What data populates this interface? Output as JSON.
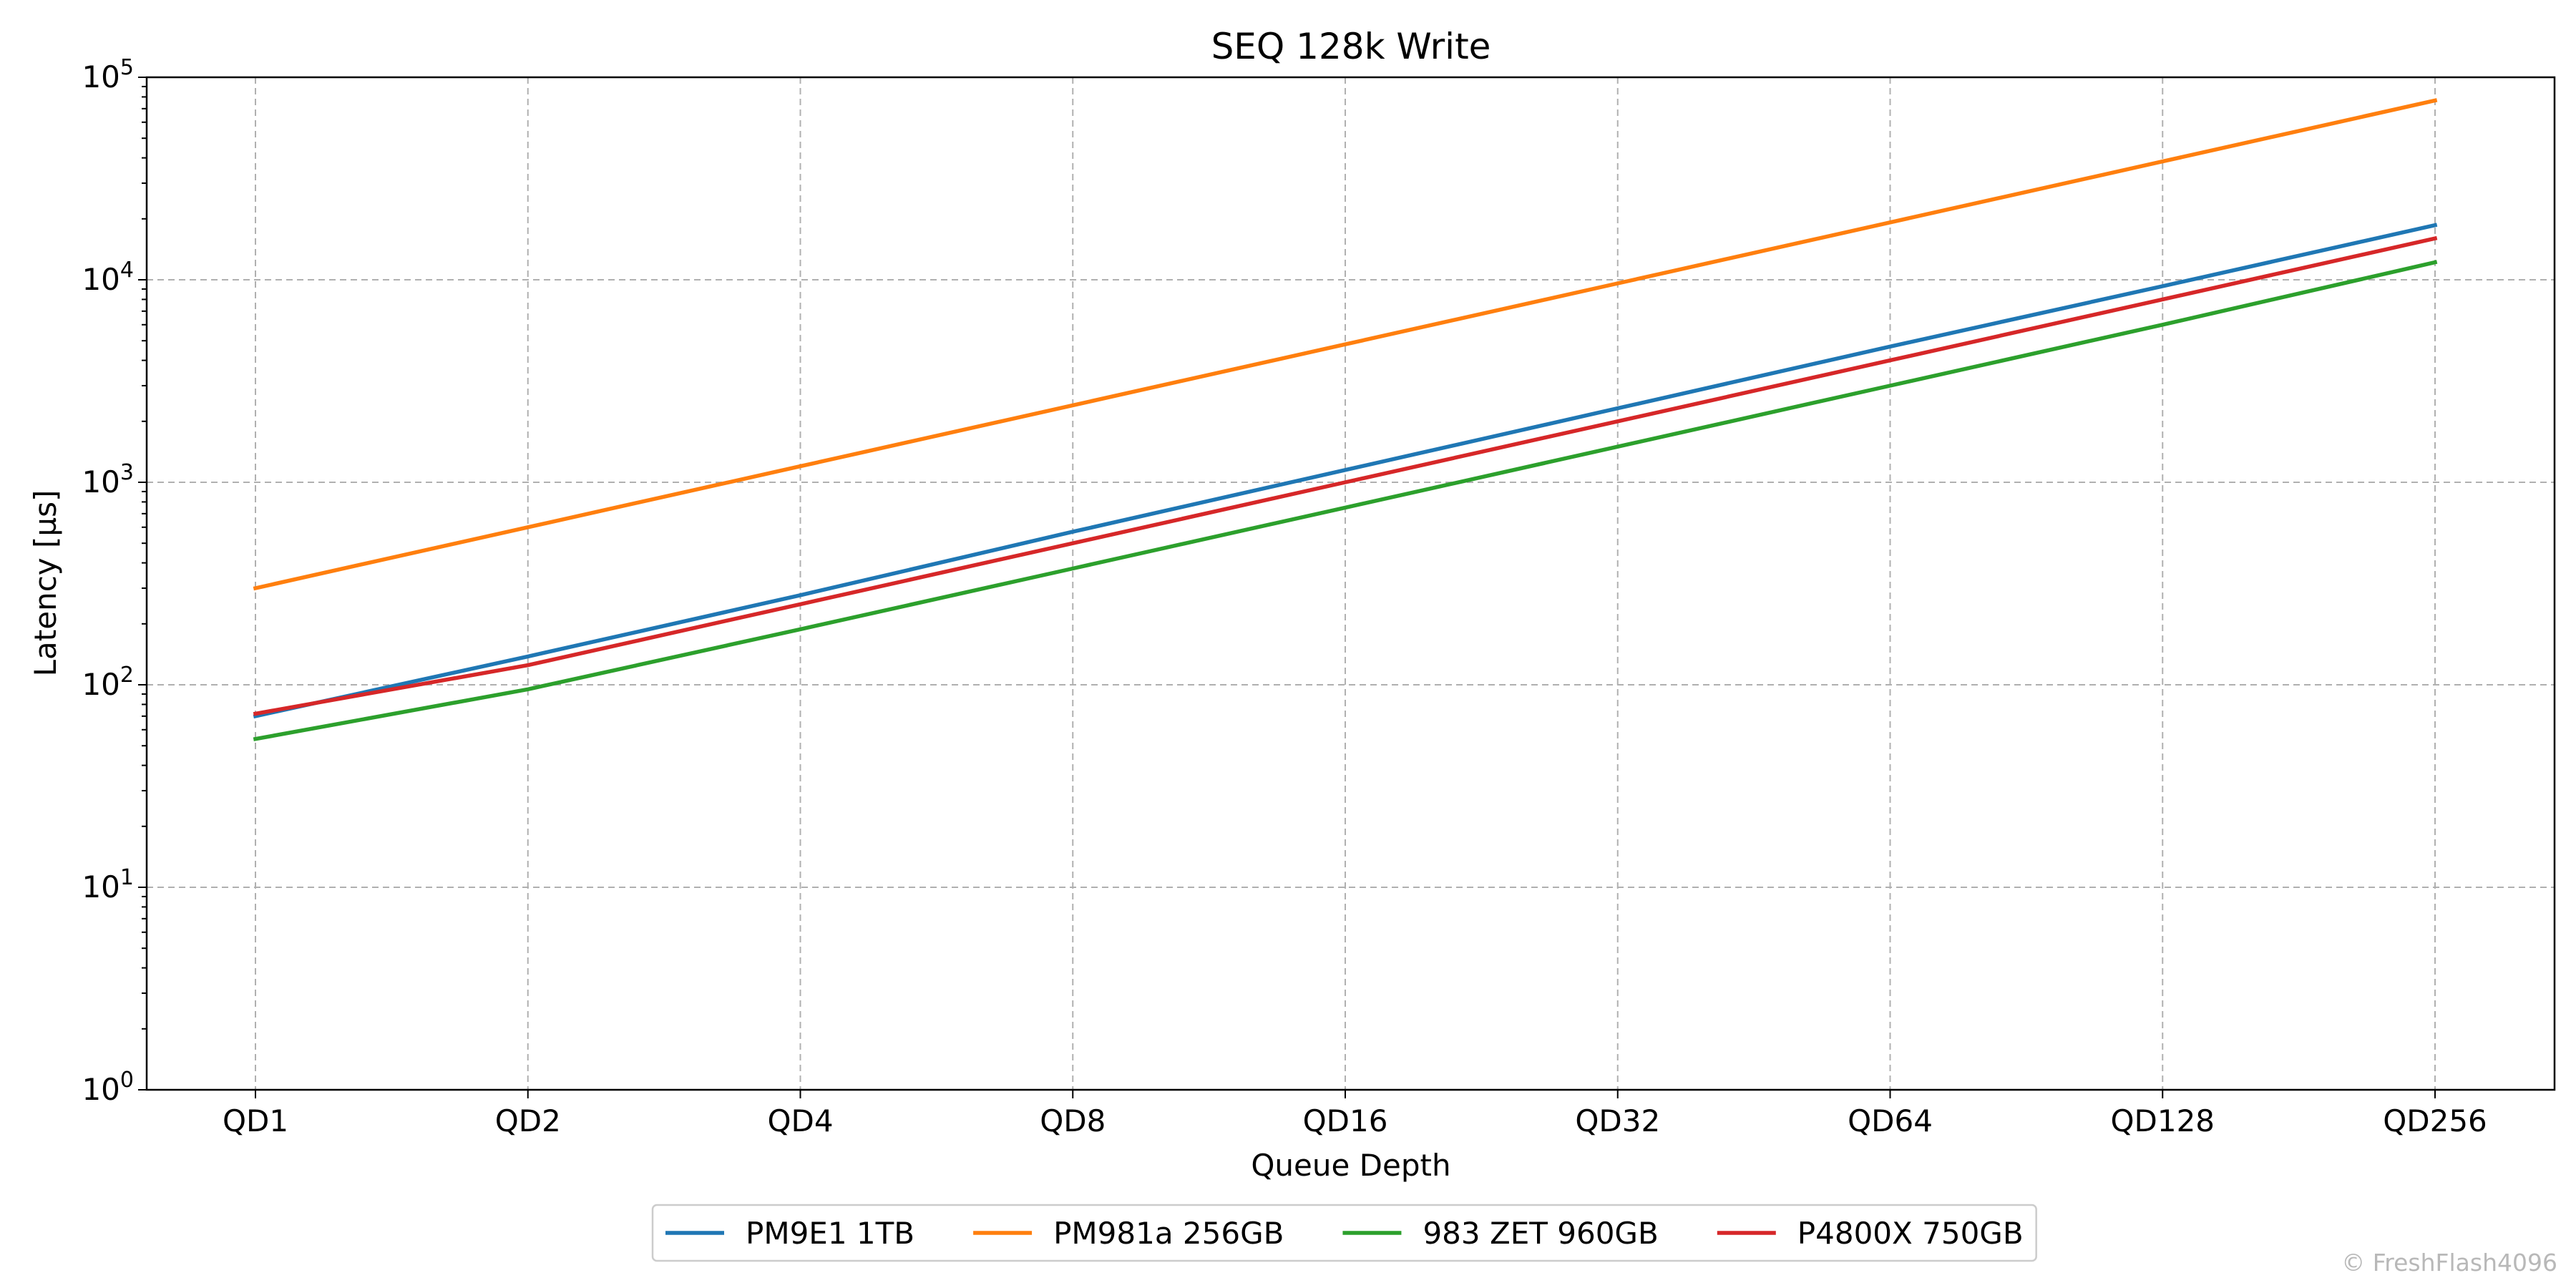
{
  "chart_data": {
    "type": "line",
    "title": "SEQ 128k Write",
    "xlabel": "Queue Depth",
    "ylabel": "Latency [µs]",
    "yscale": "log",
    "ylim": [
      1,
      100000
    ],
    "y_ticks": [
      {
        "base": "10",
        "exp": "0",
        "value": 1
      },
      {
        "base": "10",
        "exp": "1",
        "value": 10
      },
      {
        "base": "10",
        "exp": "2",
        "value": 100
      },
      {
        "base": "10",
        "exp": "3",
        "value": 1000
      },
      {
        "base": "10",
        "exp": "4",
        "value": 10000
      },
      {
        "base": "10",
        "exp": "5",
        "value": 100000
      }
    ],
    "categories": [
      "QD1",
      "QD2",
      "QD4",
      "QD8",
      "QD16",
      "QD32",
      "QD64",
      "QD128",
      "QD256"
    ],
    "grid": true,
    "legend_position": "bottom-center",
    "series": [
      {
        "name": "PM9E1 1TB",
        "color": "#1f77b4",
        "values": [
          70,
          138,
          277,
          570,
          1150,
          2320,
          4680,
          9300,
          18600
        ]
      },
      {
        "name": "PM981a 256GB",
        "color": "#ff7f0e",
        "values": [
          300,
          600,
          1200,
          2400,
          4800,
          9600,
          19200,
          38400,
          76800
        ]
      },
      {
        "name": "983 ZET 960GB",
        "color": "#2ca02c",
        "values": [
          54,
          95,
          188,
          375,
          750,
          1500,
          3000,
          6000,
          12200
        ]
      },
      {
        "name": "P4800X 750GB",
        "color": "#d62728",
        "values": [
          72,
          125,
          250,
          500,
          1000,
          2000,
          4000,
          8000,
          16000
        ]
      }
    ]
  },
  "watermark": "© FreshFlash4096"
}
